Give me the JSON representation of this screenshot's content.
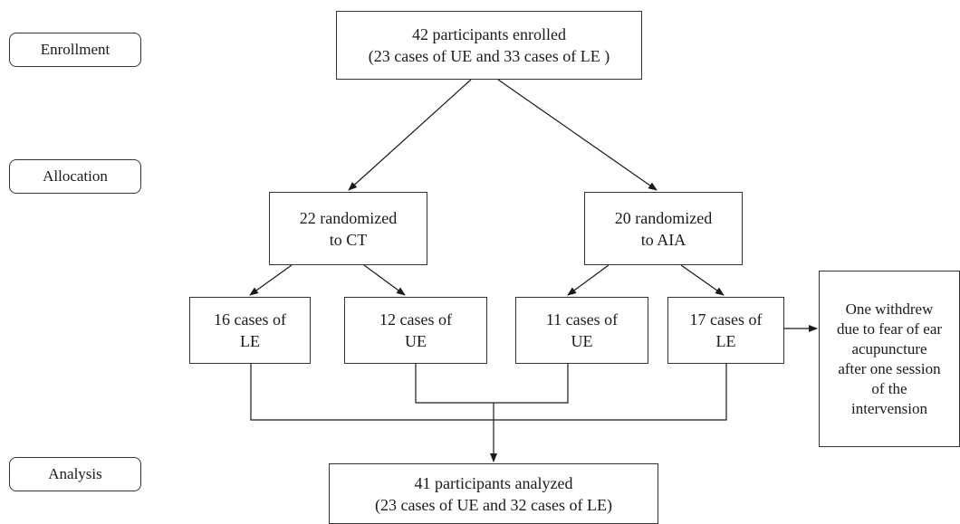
{
  "stages": {
    "enrollment": "Enrollment",
    "allocation": "Allocation",
    "analysis": "Analysis"
  },
  "boxes": {
    "enrolled": "42 participants enrolled\n(23 cases of UE and 33 cases of LE )",
    "ct": "22 randomized\nto CT",
    "aia": "20 randomized\nto AIA",
    "ct_le": "16 cases of\nLE",
    "ct_ue": "12 cases of\nUE",
    "aia_ue": "11 cases of\nUE",
    "aia_le": "17 cases of\nLE",
    "withdrawn": "One withdrew\ndue to fear of ear\nacupuncture\nafter one session\nof the\nintervension",
    "analyzed": "41 participants analyzed\n(23 cases of UE and 32 cases of LE)"
  }
}
